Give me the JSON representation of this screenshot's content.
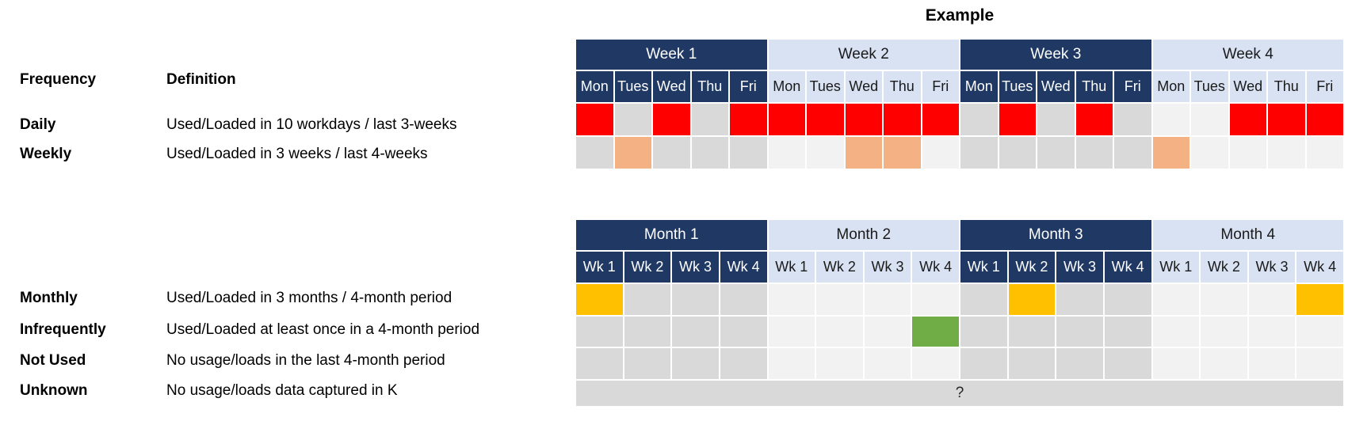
{
  "example_title": "Example",
  "colors": {
    "navy": "#1F3864",
    "light_blue": "#D9E2F3",
    "red": "#FF0000",
    "orange": "#F4B183",
    "yellow": "#FFC000",
    "green": "#70AD47",
    "gray": "#D9D9D9",
    "light_gray": "#F2F2F2"
  },
  "legend": {
    "frequency_header": "Frequency",
    "definition_header": "Definition",
    "rows": [
      {
        "label": "Daily",
        "definition": "Used/Loaded in 10 workdays / last 3-weeks"
      },
      {
        "label": "Weekly",
        "definition": "Used/Loaded in 3 weeks / last 4-weeks"
      },
      {
        "label": "Monthly",
        "definition": "Used/Loaded in 3 months / 4-month period"
      },
      {
        "label": "Infrequently",
        "definition": "Used/Loaded at least once in a 4-month period"
      },
      {
        "label": "Not Used",
        "definition": "No usage/loads in the last 4-month period"
      },
      {
        "label": "Unknown",
        "definition": "No usage/loads data captured in K"
      }
    ]
  },
  "week_table": {
    "groups": [
      {
        "label": "Week 1",
        "theme": "dark"
      },
      {
        "label": "Week 2",
        "theme": "light"
      },
      {
        "label": "Week 3",
        "theme": "dark"
      },
      {
        "label": "Week 4",
        "theme": "light"
      }
    ],
    "day_labels": [
      "Mon",
      "Tues",
      "Wed",
      "Thu",
      "Fri"
    ],
    "rows": [
      {
        "name": "daily",
        "cells": [
          "red",
          "gray",
          "red",
          "gray",
          "red",
          "red",
          "red",
          "red",
          "red",
          "red",
          "gray",
          "red",
          "gray",
          "red",
          "gray",
          "light",
          "light",
          "red",
          "red",
          "red"
        ]
      },
      {
        "name": "weekly",
        "cells": [
          "gray",
          "orange",
          "gray",
          "gray",
          "gray",
          "light",
          "light",
          "orange",
          "orange",
          "light",
          "gray",
          "gray",
          "gray",
          "gray",
          "gray",
          "orange",
          "light",
          "light",
          "light",
          "light"
        ]
      }
    ]
  },
  "month_table": {
    "groups": [
      {
        "label": "Month 1",
        "theme": "dark"
      },
      {
        "label": "Month 2",
        "theme": "light"
      },
      {
        "label": "Month 3",
        "theme": "dark"
      },
      {
        "label": "Month 4",
        "theme": "light"
      }
    ],
    "week_labels": [
      "Wk 1",
      "Wk 2",
      "Wk 3",
      "Wk 4"
    ],
    "rows": [
      {
        "name": "monthly",
        "cells": [
          "yellow",
          "gray",
          "gray",
          "gray",
          "light",
          "light",
          "light",
          "light",
          "gray",
          "yellow",
          "gray",
          "gray",
          "light",
          "light",
          "light",
          "yellow"
        ]
      },
      {
        "name": "infrequently",
        "cells": [
          "gray",
          "gray",
          "gray",
          "gray",
          "light",
          "light",
          "light",
          "green",
          "gray",
          "gray",
          "gray",
          "gray",
          "light",
          "light",
          "light",
          "light"
        ]
      },
      {
        "name": "not-used",
        "cells": [
          "gray",
          "gray",
          "gray",
          "gray",
          "light",
          "light",
          "light",
          "light",
          "gray",
          "gray",
          "gray",
          "gray",
          "light",
          "light",
          "light",
          "light"
        ]
      }
    ],
    "unknown_label": "?"
  }
}
